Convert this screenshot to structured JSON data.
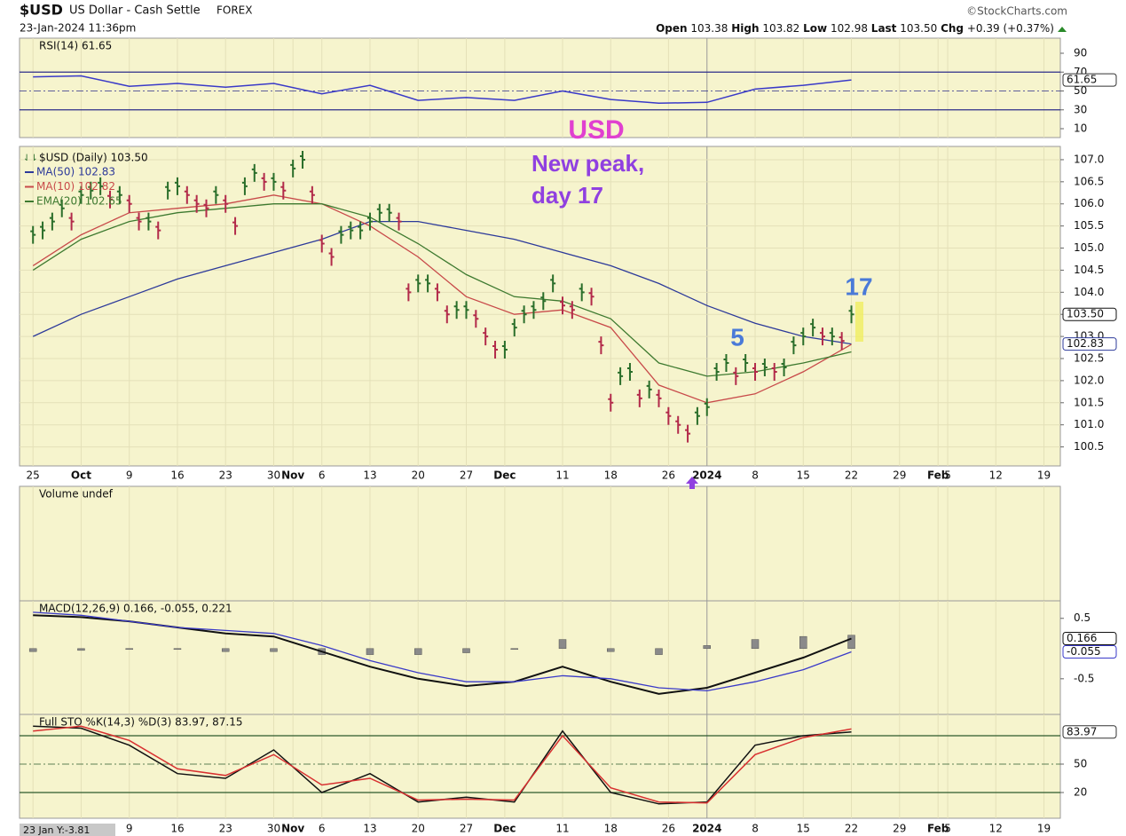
{
  "header": {
    "symbol": "$USD",
    "name": "US Dollar - Cash Settle",
    "exchange": "FOREX",
    "timestamp": "23-Jan-2024 11:36pm",
    "source": "©StockCharts.com",
    "quote": [
      {
        "label": "Open",
        "value": "103.38"
      },
      {
        "label": "High",
        "value": "103.82"
      },
      {
        "label": "Low",
        "value": "102.98"
      },
      {
        "label": "Last",
        "value": "103.50"
      },
      {
        "label": "Chg",
        "value": "+0.39 (+0.37%)"
      }
    ]
  },
  "annotations": {
    "name": "USD",
    "note_1": "New peak,",
    "note_2": "day 17",
    "count_5": "5",
    "count_17": "17"
  },
  "cursor": "23 Jan Y:-3.81",
  "chart_data": [
    {
      "type": "line",
      "title": "RSI(14) 61.65",
      "ylim": [
        0.6,
        106
      ],
      "yticks": [
        10,
        30,
        50,
        70,
        90
      ],
      "levels": [
        30,
        50,
        70
      ],
      "x": [
        0,
        5,
        10,
        15,
        20,
        25,
        30,
        35,
        40,
        45,
        50,
        55,
        60,
        65,
        70,
        75,
        80,
        85
      ],
      "series": [
        {
          "color": "#3a3ac8",
          "values": [
            65,
            66,
            55,
            58,
            54,
            58,
            47,
            56,
            40,
            43,
            40,
            50,
            41,
            37,
            38,
            52,
            56,
            61.65
          ]
        }
      ],
      "tags": [
        "61.65"
      ]
    },
    {
      "type": "ohlc",
      "title": "$USD (Daily) 103.50",
      "xlim": [
        -1.4,
        106.7
      ],
      "xticks": [
        {
          "value": 0,
          "label": "25"
        },
        {
          "value": 5,
          "label": "Oct"
        },
        {
          "value": 10,
          "label": "9"
        },
        {
          "value": 15,
          "label": "16"
        },
        {
          "value": 20,
          "label": "23"
        },
        {
          "value": 25,
          "label": "30"
        },
        {
          "value": 27,
          "label": "Nov"
        },
        {
          "value": 30,
          "label": "6"
        },
        {
          "value": 35,
          "label": "13"
        },
        {
          "value": 40,
          "label": "20"
        },
        {
          "value": 45,
          "label": "27"
        },
        {
          "value": 49,
          "label": "Dec"
        },
        {
          "value": 55,
          "label": "11"
        },
        {
          "value": 60,
          "label": "18"
        },
        {
          "value": 66,
          "label": "26"
        },
        {
          "value": 70,
          "label": "2024"
        },
        {
          "value": 75,
          "label": "8"
        },
        {
          "value": 80,
          "label": "15"
        },
        {
          "value": 85,
          "label": "22"
        },
        {
          "value": 90,
          "label": "29"
        },
        {
          "value": 94,
          "label": "Feb"
        },
        {
          "value": 95,
          "label": "5"
        },
        {
          "value": 100,
          "label": "12"
        },
        {
          "value": 105,
          "label": "19"
        }
      ],
      "ylim": [
        100.07,
        107.3
      ],
      "yticks": [
        100.5,
        {
          "value": 101,
          "label": "101.0"
        },
        101.5,
        {
          "value": 102,
          "label": "102.0"
        },
        102.5,
        {
          "value": 103,
          "label": "103.0"
        },
        103.5,
        {
          "value": 104,
          "label": "104.0"
        },
        104.5,
        {
          "value": 105,
          "label": "105.0"
        },
        105.5,
        {
          "value": 106,
          "label": "106.0"
        },
        106.5,
        {
          "value": 107,
          "label": "107.0"
        }
      ],
      "bars": {
        "x": [
          0,
          1,
          2,
          3,
          4,
          5,
          6,
          7,
          8,
          9,
          10,
          11,
          12,
          13,
          14,
          15,
          16,
          17,
          18,
          19,
          20,
          21,
          22,
          23,
          24,
          25,
          26,
          27,
          28,
          29,
          30,
          31,
          32,
          33,
          34,
          35,
          36,
          37,
          38,
          39,
          40,
          41,
          42,
          43,
          44,
          45,
          46,
          47,
          48,
          49,
          50,
          51,
          52,
          53,
          54,
          55,
          56,
          57,
          58,
          59,
          60,
          61,
          62,
          63,
          64,
          65,
          66,
          67,
          68,
          69,
          70,
          71,
          72,
          73,
          74,
          75,
          76,
          77,
          78,
          79,
          80,
          81,
          82,
          83,
          84,
          85
        ],
        "close": [
          105.3,
          105.4,
          105.6,
          105.9,
          105.6,
          106.2,
          106.3,
          106.4,
          106.1,
          106.2,
          106.0,
          105.6,
          105.6,
          105.4,
          106.3,
          106.4,
          106.2,
          106.0,
          105.9,
          106.2,
          106.0,
          105.5,
          106.4,
          106.7,
          106.5,
          106.5,
          106.3,
          106.8,
          107.0,
          106.2,
          105.1,
          104.8,
          105.3,
          105.4,
          105.4,
          105.6,
          105.8,
          105.8,
          105.6,
          104.0,
          104.2,
          104.2,
          104.0,
          103.5,
          103.6,
          103.6,
          103.4,
          103.0,
          102.7,
          102.7,
          103.2,
          103.5,
          103.6,
          103.8,
          104.2,
          103.7,
          103.6,
          104.0,
          103.9,
          102.8,
          101.5,
          102.1,
          102.2,
          101.6,
          101.8,
          101.6,
          101.2,
          101.0,
          100.8,
          101.2,
          101.4,
          102.2,
          102.4,
          102.1,
          102.4,
          102.2,
          102.3,
          102.2,
          102.3,
          102.8,
          103.0,
          103.2,
          103.0,
          103.0,
          102.9,
          103.5
        ]
      },
      "ma_x": [
        0,
        5,
        10,
        15,
        20,
        25,
        30,
        35,
        40,
        45,
        50,
        55,
        60,
        65,
        70,
        75,
        80,
        85
      ],
      "series": [
        {
          "name": "MA(50) 102.83",
          "color": "#2d3a9a",
          "values": [
            103.0,
            103.5,
            103.9,
            104.3,
            104.6,
            104.9,
            105.2,
            105.6,
            105.6,
            105.4,
            105.2,
            104.9,
            104.6,
            104.2,
            103.7,
            103.3,
            103.0,
            102.83
          ]
        },
        {
          "name": "MA(10) 102.82",
          "color": "#c84a4a",
          "values": [
            104.6,
            105.3,
            105.8,
            105.9,
            106.0,
            106.2,
            106.0,
            105.5,
            104.8,
            103.9,
            103.5,
            103.6,
            103.2,
            101.9,
            101.5,
            101.7,
            102.2,
            102.82
          ]
        },
        {
          "name": "EMA(20) 102.65",
          "color": "#3e7a30",
          "values": [
            104.5,
            105.2,
            105.6,
            105.8,
            105.9,
            106.0,
            106.0,
            105.7,
            105.1,
            104.4,
            103.9,
            103.8,
            103.4,
            102.4,
            102.1,
            102.2,
            102.4,
            102.65
          ]
        }
      ],
      "tags": [
        "103.50",
        "102.83"
      ]
    },
    {
      "type": "empty",
      "title": "Volume undef"
    },
    {
      "type": "macd",
      "title": "MACD(12,26,9) 0.166, -0.055, 0.221",
      "ylim": [
        -1.09,
        0.79
      ],
      "yticks": [
        0.5,
        -0.5
      ],
      "x": [
        0,
        5,
        10,
        15,
        20,
        25,
        30,
        35,
        40,
        45,
        50,
        55,
        60,
        65,
        70,
        75,
        80,
        85
      ],
      "series": [
        {
          "color": "#111111",
          "values": [
            0.55,
            0.52,
            0.45,
            0.35,
            0.25,
            0.2,
            -0.05,
            -0.3,
            -0.5,
            -0.62,
            -0.55,
            -0.3,
            -0.55,
            -0.75,
            -0.65,
            -0.4,
            -0.15,
            0.166
          ]
        },
        {
          "color": "#3a3ac8",
          "values": [
            0.6,
            0.55,
            0.45,
            0.35,
            0.3,
            0.25,
            0.05,
            -0.2,
            -0.4,
            -0.55,
            -0.55,
            -0.45,
            -0.5,
            -0.65,
            -0.7,
            -0.55,
            -0.35,
            -0.055
          ]
        },
        {
          "color": "#8a8a8a",
          "style": "histogram",
          "values": [
            -0.05,
            -0.03,
            0,
            0,
            -0.05,
            -0.05,
            -0.1,
            -0.1,
            -0.1,
            -0.07,
            0,
            0.15,
            -0.05,
            -0.1,
            0.05,
            0.15,
            0.2,
            0.221
          ]
        }
      ],
      "tags": [
        "0.166",
        "-0.055"
      ]
    },
    {
      "type": "line",
      "title": "Full STO %K(14,3) %D(3) 83.97, 87.15",
      "ylim": [
        -7.2,
        102.5
      ],
      "yticks": [
        20,
        50
      ],
      "levels": [
        20,
        50,
        80
      ],
      "x": [
        0,
        5,
        10,
        15,
        20,
        25,
        30,
        35,
        40,
        45,
        50,
        55,
        60,
        65,
        70,
        75,
        80,
        85
      ],
      "series": [
        {
          "color": "#111111",
          "values": [
            90,
            88,
            70,
            40,
            35,
            65,
            20,
            40,
            10,
            15,
            10,
            85,
            20,
            8,
            10,
            70,
            80,
            83.97
          ]
        },
        {
          "color": "#d83030",
          "values": [
            85,
            90,
            75,
            45,
            38,
            60,
            28,
            35,
            12,
            13,
            12,
            80,
            25,
            10,
            9,
            60,
            78,
            87.15
          ]
        }
      ],
      "tags": [
        "83.97"
      ]
    }
  ]
}
